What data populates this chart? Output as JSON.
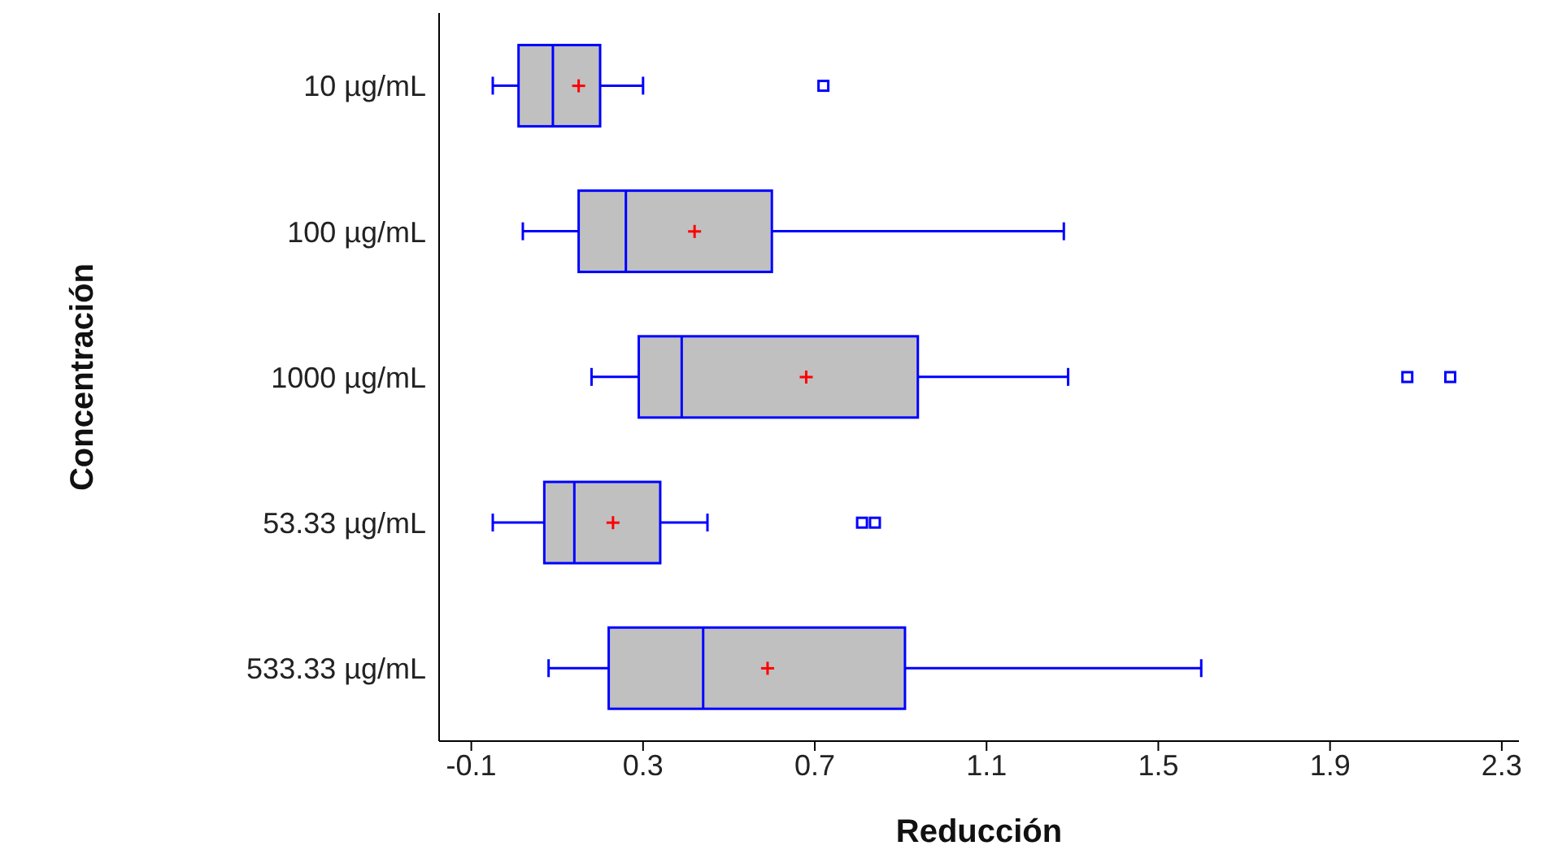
{
  "chart_data": {
    "type": "box",
    "orientation": "horizontal",
    "xlabel": "Reducción",
    "ylabel": "Concentración",
    "categories": [
      "10 µg/mL",
      "100 µg/mL",
      "1000 µg/mL",
      "53.33 µg/mL",
      "533.33 µg/mL"
    ],
    "series": [
      {
        "color": "#0000ff",
        "boxes": [
          {
            "low": -0.05,
            "q1": 0.01,
            "median": 0.09,
            "q3": 0.2,
            "high": 0.3,
            "mean": 0.15,
            "outliers": [
              0.72
            ]
          },
          {
            "low": 0.02,
            "q1": 0.15,
            "median": 0.26,
            "q3": 0.6,
            "high": 1.28,
            "mean": 0.42
          },
          {
            "low": 0.18,
            "q1": 0.29,
            "median": 0.39,
            "q3": 0.94,
            "high": 1.29,
            "mean": 0.68,
            "outliers": [
              2.08,
              2.18
            ]
          },
          {
            "low": -0.05,
            "q1": 0.07,
            "median": 0.14,
            "q3": 0.34,
            "high": 0.45,
            "mean": 0.23,
            "outliers": [
              0.81,
              0.84
            ]
          },
          {
            "low": 0.08,
            "q1": 0.22,
            "median": 0.44,
            "q3": 0.91,
            "high": 1.6,
            "mean": 0.59
          }
        ]
      }
    ],
    "xlim": [
      -0.175,
      2.34
    ],
    "xticks": [
      -0.1,
      0.3,
      0.7,
      1.1,
      1.5,
      1.9,
      2.3
    ],
    "grid": false
  }
}
